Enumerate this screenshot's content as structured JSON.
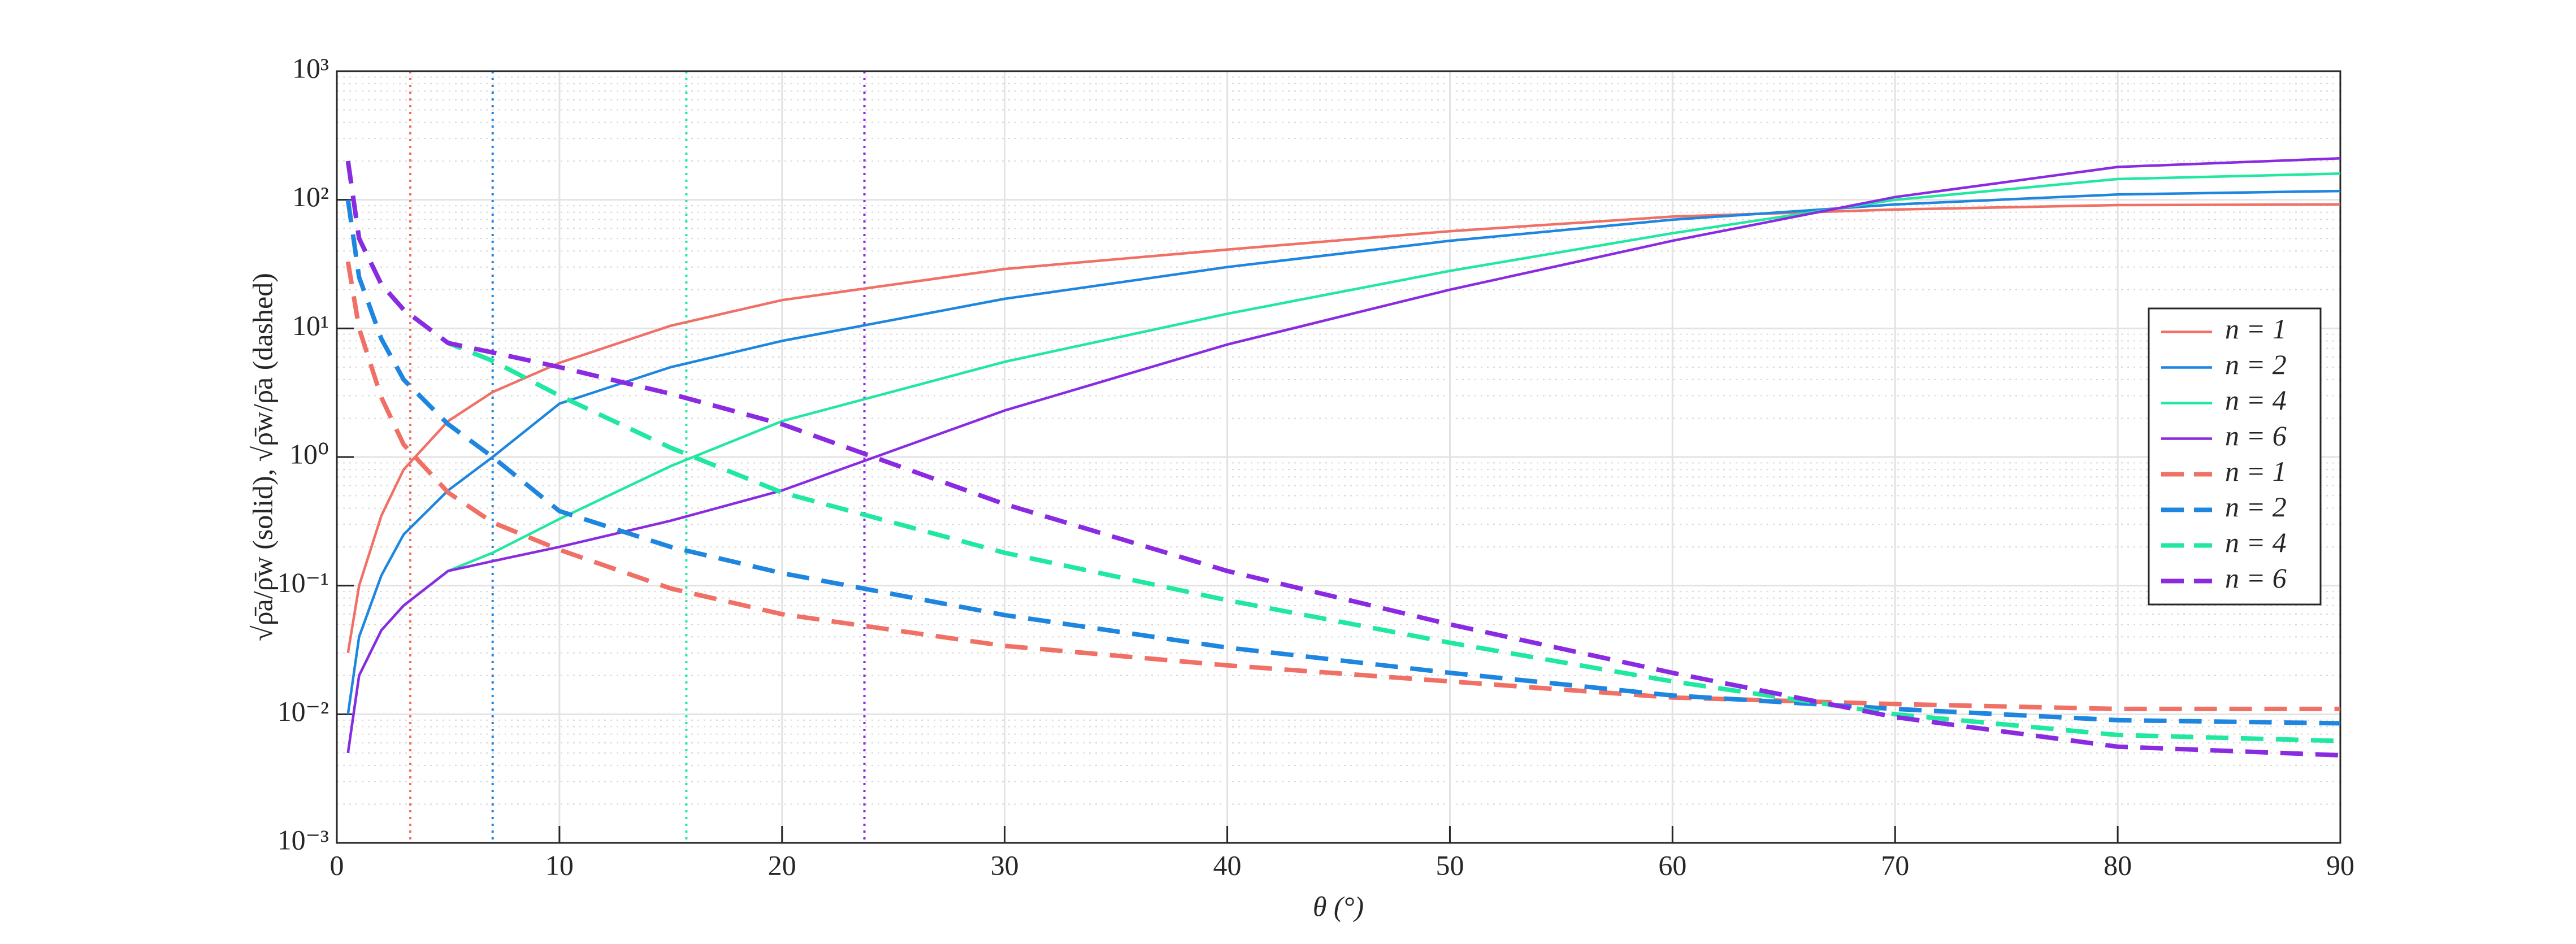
{
  "chart_data": {
    "type": "line",
    "xlabel": "θ (°)",
    "ylabel": "√ρ̄a/ρ̄w (solid), √ρ̄w/ρ̄a (dashed)",
    "x": [
      0.5,
      1,
      2,
      3,
      5,
      7,
      10,
      15,
      20,
      30,
      40,
      50,
      60,
      70,
      80,
      90
    ],
    "series": [
      {
        "name": "n = 1",
        "color": "#f07066",
        "style": "solid",
        "values": [
          0.03,
          0.1,
          0.35,
          0.8,
          1.9,
          3.2,
          5.4,
          10.5,
          16.6,
          29,
          41,
          57,
          74,
          84,
          91,
          92
        ]
      },
      {
        "name": "n = 2",
        "color": "#1f86e0",
        "style": "solid",
        "values": [
          0.01,
          0.04,
          0.12,
          0.25,
          0.55,
          1.0,
          2.6,
          5,
          8,
          17,
          30,
          48,
          70,
          92,
          110,
          117
        ]
      },
      {
        "name": "n = 4",
        "color": "#20e8a0",
        "style": "solid",
        "values": [
          0.005,
          0.02,
          0.045,
          0.07,
          0.13,
          0.18,
          0.33,
          0.85,
          1.9,
          5.5,
          13,
          28,
          55,
          100,
          145,
          160
        ]
      },
      {
        "name": "n = 6",
        "color": "#8a2be2",
        "style": "solid",
        "values": [
          0.005,
          0.02,
          0.045,
          0.07,
          0.13,
          0.155,
          0.2,
          0.32,
          0.55,
          2.3,
          7.5,
          20,
          48,
          105,
          180,
          210
        ]
      },
      {
        "name": "n = 1",
        "color": "#f07066",
        "style": "dashed",
        "values": [
          33,
          10,
          2.9,
          1.25,
          0.53,
          0.31,
          0.19,
          0.095,
          0.06,
          0.034,
          0.024,
          0.018,
          0.0135,
          0.012,
          0.011,
          0.011
        ]
      },
      {
        "name": "n = 2",
        "color": "#1f86e0",
        "style": "dashed",
        "values": [
          100,
          25,
          8.3,
          4,
          1.8,
          1.0,
          0.38,
          0.2,
          0.125,
          0.059,
          0.033,
          0.021,
          0.014,
          0.011,
          0.009,
          0.0085
        ]
      },
      {
        "name": "n = 4",
        "color": "#20e8a0",
        "style": "dashed",
        "values": [
          200,
          50,
          22,
          14,
          7.7,
          5.6,
          3,
          1.18,
          0.53,
          0.18,
          0.077,
          0.036,
          0.018,
          0.01,
          0.0069,
          0.0062
        ]
      },
      {
        "name": "n = 6",
        "color": "#8a2be2",
        "style": "dashed",
        "values": [
          200,
          50,
          22,
          14,
          7.7,
          6.5,
          5,
          3.1,
          1.8,
          0.43,
          0.13,
          0.05,
          0.021,
          0.0095,
          0.0056,
          0.0048
        ]
      }
    ],
    "reference_lines": {
      "x": [
        3.3,
        7,
        15.7,
        23.7
      ],
      "colors": [
        "#f07066",
        "#1f86e0",
        "#20e8a0",
        "#8a2be2"
      ]
    },
    "xlim": [
      0,
      90
    ],
    "xticks": [
      0,
      10,
      20,
      30,
      40,
      50,
      60,
      70,
      80,
      90
    ],
    "ylim": [
      0.001,
      1000
    ],
    "yticks": [
      {
        "value": 0.001,
        "label": "10⁻³"
      },
      {
        "value": 0.01,
        "label": "10⁻²"
      },
      {
        "value": 0.1,
        "label": "10⁻¹"
      },
      {
        "value": 1,
        "label": "10⁰"
      },
      {
        "value": 10,
        "label": "10¹"
      },
      {
        "value": 100,
        "label": "10²"
      },
      {
        "value": 1000,
        "label": "10³"
      }
    ],
    "yscale": "log",
    "grid": true,
    "minor_grid": true,
    "legend": "right"
  }
}
